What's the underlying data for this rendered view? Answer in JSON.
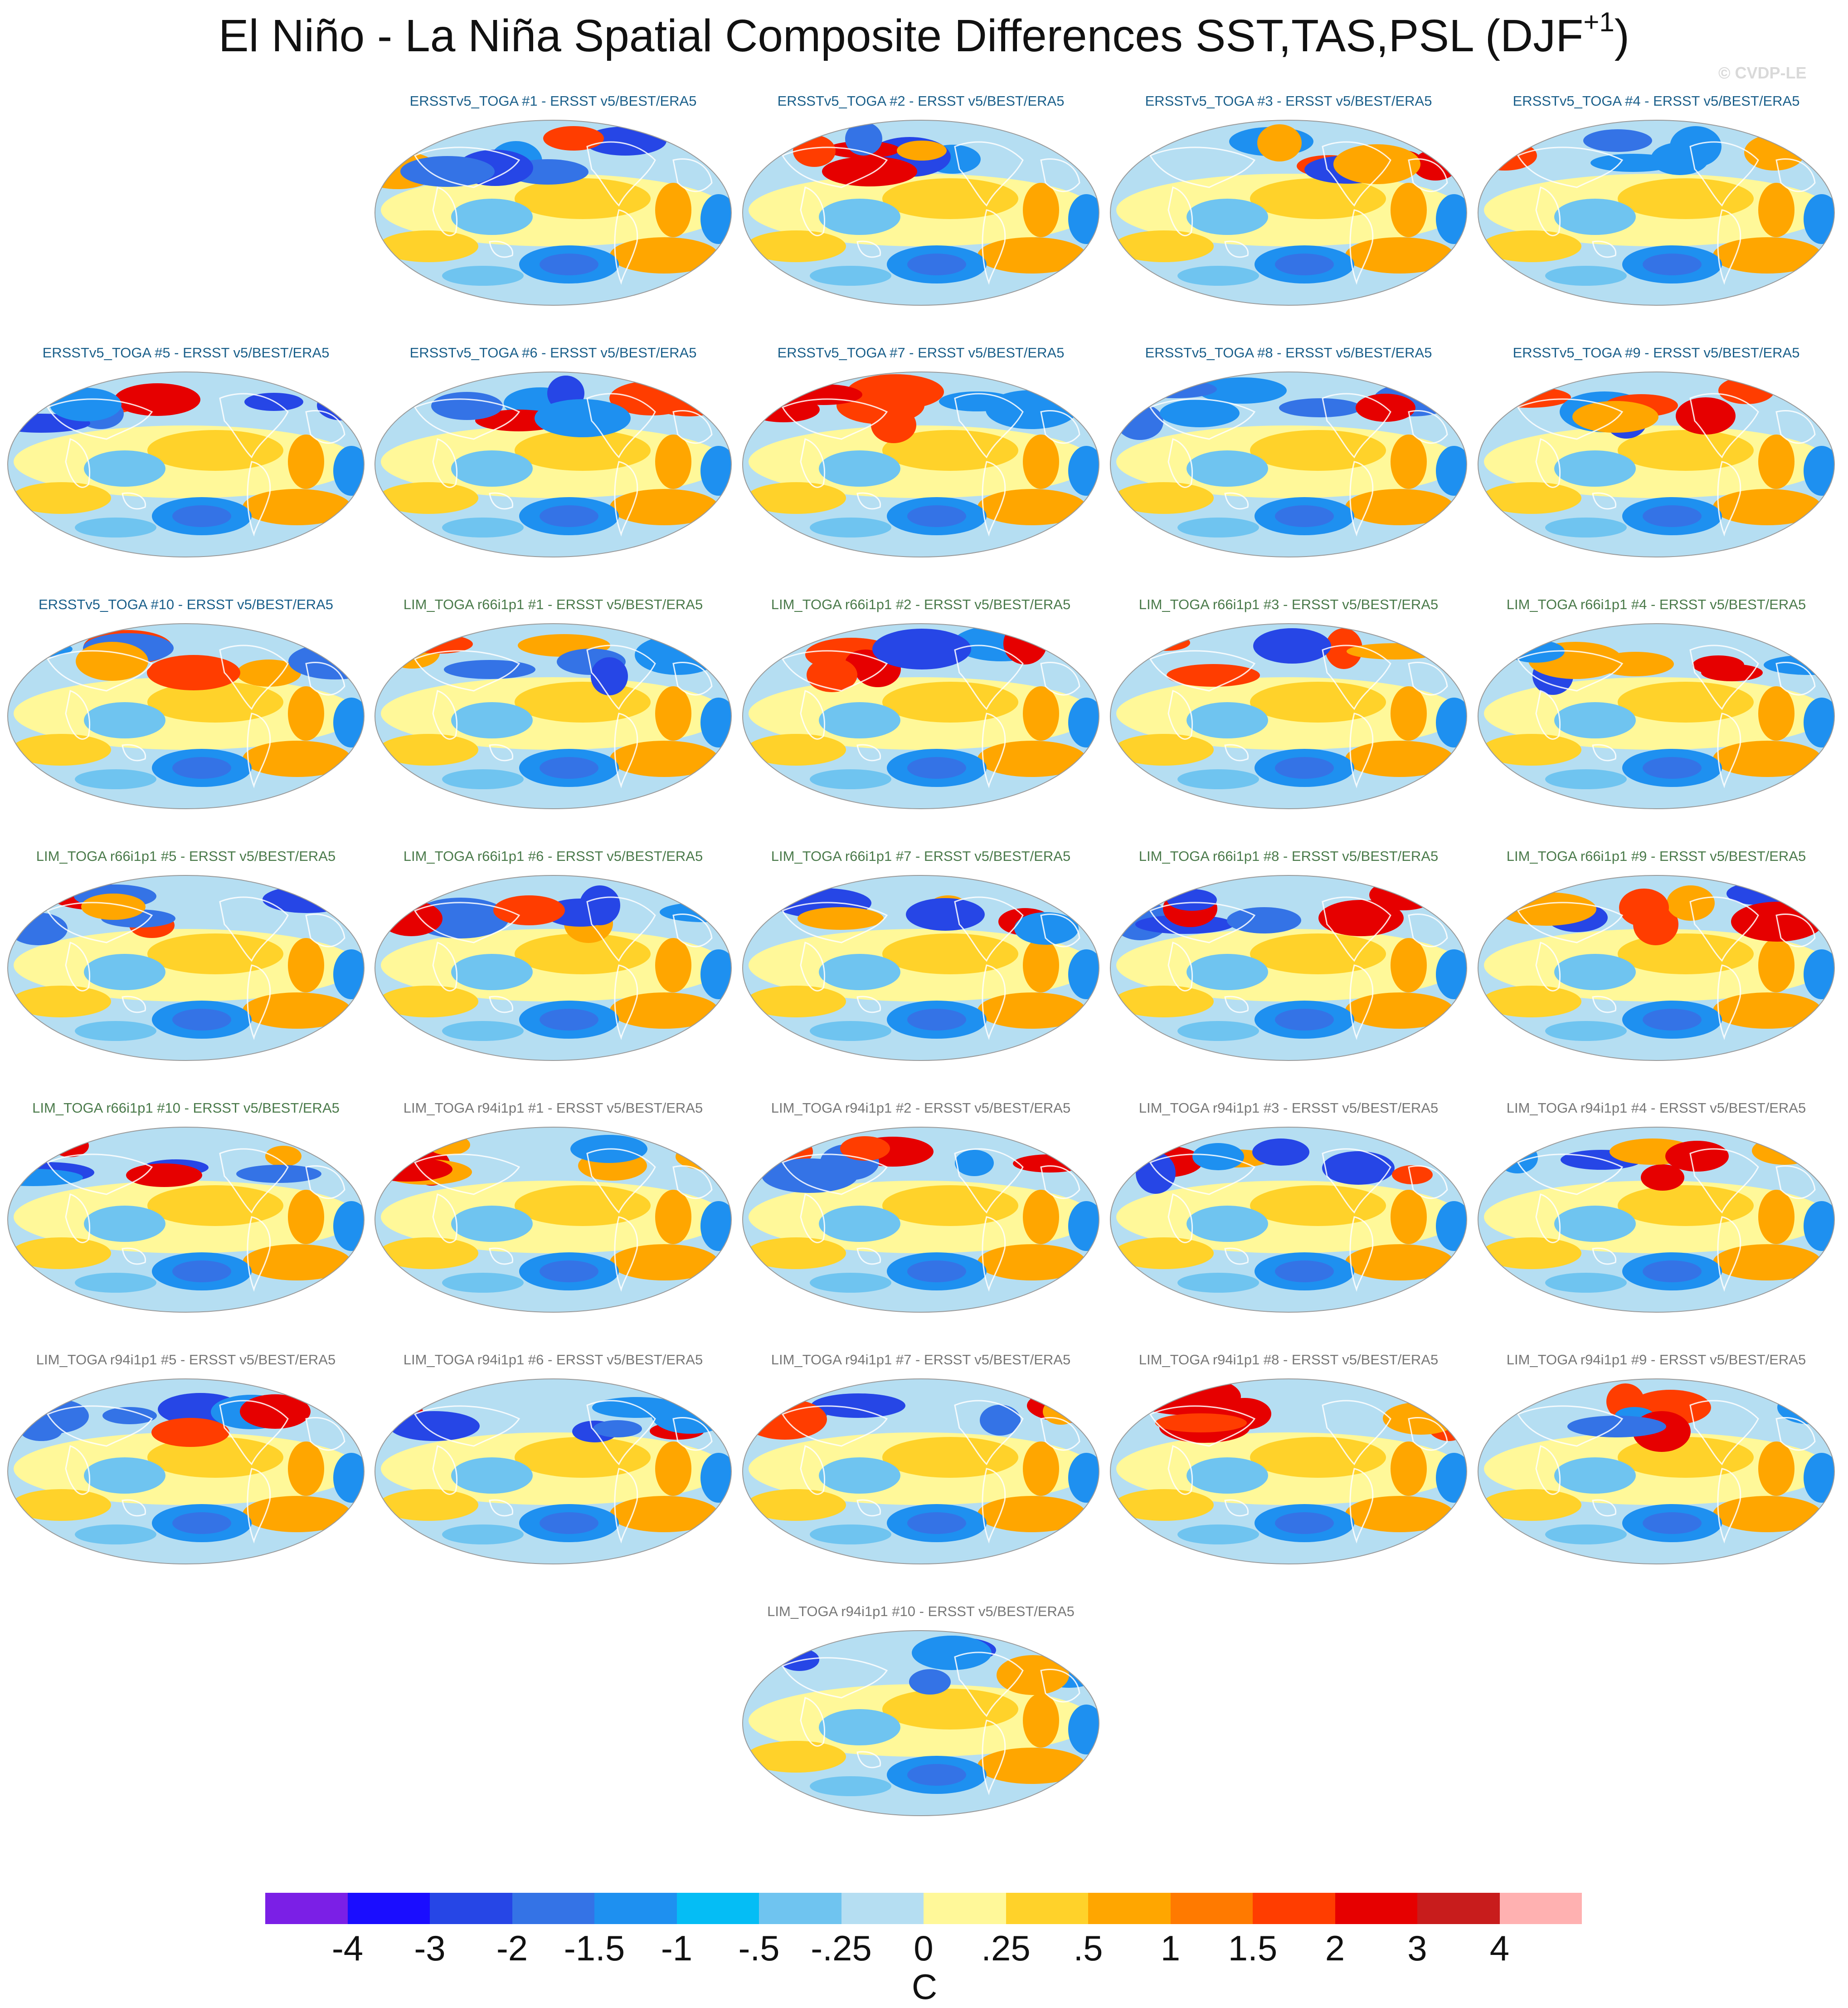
{
  "title": "El Niño - La Niña Spatial Composite Differences SST,TAS,PSL (DJF",
  "title_superscript": "+1",
  "title_close": ")",
  "watermark": "© CVDP-LE",
  "label_colors": {
    "ersst": "#1a5f8a",
    "lim66": "#4a7a4a",
    "lim94": "#777777"
  },
  "panels": [
    {
      "label": "ERSSTv5_TOGA #1 - ERSST v5/BEST/ERA5",
      "group": "ersst"
    },
    {
      "label": "ERSSTv5_TOGA #2 - ERSST v5/BEST/ERA5",
      "group": "ersst"
    },
    {
      "label": "ERSSTv5_TOGA #3 - ERSST v5/BEST/ERA5",
      "group": "ersst"
    },
    {
      "label": "ERSSTv5_TOGA #4 - ERSST v5/BEST/ERA5",
      "group": "ersst"
    },
    {
      "label": "ERSSTv5_TOGA #5 - ERSST v5/BEST/ERA5",
      "group": "ersst"
    },
    {
      "label": "ERSSTv5_TOGA #6 - ERSST v5/BEST/ERA5",
      "group": "ersst"
    },
    {
      "label": "ERSSTv5_TOGA #7 - ERSST v5/BEST/ERA5",
      "group": "ersst"
    },
    {
      "label": "ERSSTv5_TOGA #8 - ERSST v5/BEST/ERA5",
      "group": "ersst"
    },
    {
      "label": "ERSSTv5_TOGA #9 - ERSST v5/BEST/ERA5",
      "group": "ersst"
    },
    {
      "label": "ERSSTv5_TOGA #10 - ERSST v5/BEST/ERA5",
      "group": "ersst"
    },
    {
      "label": "LIM_TOGA r66i1p1 #1 - ERSST v5/BEST/ERA5",
      "group": "lim66"
    },
    {
      "label": "LIM_TOGA r66i1p1 #2 - ERSST v5/BEST/ERA5",
      "group": "lim66"
    },
    {
      "label": "LIM_TOGA r66i1p1 #3 - ERSST v5/BEST/ERA5",
      "group": "lim66"
    },
    {
      "label": "LIM_TOGA r66i1p1 #4 - ERSST v5/BEST/ERA5",
      "group": "lim66"
    },
    {
      "label": "LIM_TOGA r66i1p1 #5 - ERSST v5/BEST/ERA5",
      "group": "lim66"
    },
    {
      "label": "LIM_TOGA r66i1p1 #6 - ERSST v5/BEST/ERA5",
      "group": "lim66"
    },
    {
      "label": "LIM_TOGA r66i1p1 #7 - ERSST v5/BEST/ERA5",
      "group": "lim66"
    },
    {
      "label": "LIM_TOGA r66i1p1 #8 - ERSST v5/BEST/ERA5",
      "group": "lim66"
    },
    {
      "label": "LIM_TOGA r66i1p1 #9 - ERSST v5/BEST/ERA5",
      "group": "lim66"
    },
    {
      "label": "LIM_TOGA r66i1p1 #10 - ERSST v5/BEST/ERA5",
      "group": "lim66"
    },
    {
      "label": "LIM_TOGA r94i1p1 #1 - ERSST v5/BEST/ERA5",
      "group": "lim94"
    },
    {
      "label": "LIM_TOGA r94i1p1 #2 - ERSST v5/BEST/ERA5",
      "group": "lim94"
    },
    {
      "label": "LIM_TOGA r94i1p1 #3 - ERSST v5/BEST/ERA5",
      "group": "lim94"
    },
    {
      "label": "LIM_TOGA r94i1p1 #4 - ERSST v5/BEST/ERA5",
      "group": "lim94"
    },
    {
      "label": "LIM_TOGA r94i1p1 #5 - ERSST v5/BEST/ERA5",
      "group": "lim94"
    },
    {
      "label": "LIM_TOGA r94i1p1 #6 - ERSST v5/BEST/ERA5",
      "group": "lim94"
    },
    {
      "label": "LIM_TOGA r94i1p1 #7 - ERSST v5/BEST/ERA5",
      "group": "lim94"
    },
    {
      "label": "LIM_TOGA r94i1p1 #8 - ERSST v5/BEST/ERA5",
      "group": "lim94"
    },
    {
      "label": "LIM_TOGA r94i1p1 #9 - ERSST v5/BEST/ERA5",
      "group": "lim94"
    },
    {
      "label": "LIM_TOGA r94i1p1 #10 - ERSST v5/BEST/ERA5",
      "group": "lim94"
    }
  ],
  "colorbar": {
    "colors": [
      "#7b1fe6",
      "#1a0dff",
      "#2646e6",
      "#3473e6",
      "#1e90f0",
      "#05bdf5",
      "#6fc4f0",
      "#b5def2",
      "#fff899",
      "#ffd22a",
      "#ffa600",
      "#ff7a00",
      "#ff3d00",
      "#e60000",
      "#c81c1c",
      "#ffb1b1"
    ],
    "ticks": [
      "-4",
      "-3",
      "-2",
      "-1.5",
      "-1",
      "-.5",
      "-.25",
      "0",
      ".25",
      ".5",
      "1",
      "1.5",
      "2",
      "3",
      "4"
    ],
    "units": "C"
  },
  "map_palette": {
    "background": "#b5def2",
    "warm_light": "#fff899",
    "warm_mid": "#ffd22a",
    "warm_strong": "#ffa600",
    "warm_hot": "#ff3d00",
    "warm_red": "#e60000",
    "cool_light": "#6fc4f0",
    "cool_mid": "#1e90f0",
    "cool_strong": "#3473e6",
    "cool_deep": "#2646e6"
  }
}
